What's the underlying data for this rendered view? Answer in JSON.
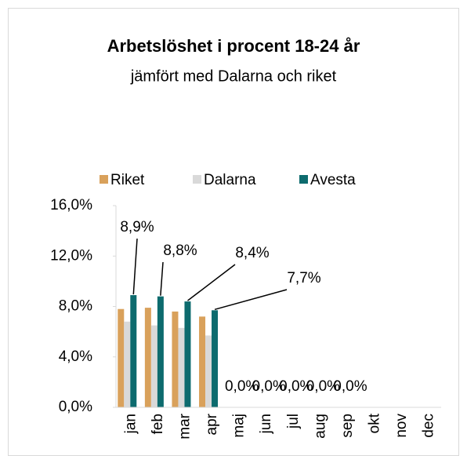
{
  "chart_data": {
    "type": "bar",
    "title": "Arbetslöshet i procent 18-24 år",
    "subtitle": "jämfört med Dalarna och riket",
    "categories": [
      "jan",
      "feb",
      "mar",
      "apr",
      "maj",
      "jun",
      "jul",
      "aug",
      "sep",
      "okt",
      "nov",
      "dec"
    ],
    "series": [
      {
        "name": "Riket",
        "color": "#d9a15b",
        "values": [
          7.8,
          7.9,
          7.6,
          7.2,
          null,
          null,
          null,
          null,
          null,
          null,
          null,
          null
        ]
      },
      {
        "name": "Dalarna",
        "color": "#d9d9d9",
        "values": [
          6.8,
          6.5,
          6.3,
          5.7,
          null,
          null,
          null,
          null,
          null,
          null,
          null,
          null
        ]
      },
      {
        "name": "Avesta",
        "color": "#0d6b6e",
        "values": [
          8.9,
          8.8,
          8.4,
          7.7,
          0,
          0,
          0,
          0,
          0,
          null,
          null,
          null
        ],
        "value_labels": [
          "8,9%",
          "8,8%",
          "8,4%",
          "7,7%",
          "0,0%",
          "0,0%",
          "0,0%",
          "0,0%",
          "0,0%",
          null,
          null,
          null
        ]
      }
    ],
    "ylim": [
      0,
      16
    ],
    "yticks": [
      {
        "value": 0,
        "label": "0,0%"
      },
      {
        "value": 4,
        "label": "4,0%"
      },
      {
        "value": 8,
        "label": "8,0%"
      },
      {
        "value": 12,
        "label": "12,0%"
      },
      {
        "value": 16,
        "label": "16,0%"
      }
    ],
    "legend": "top"
  }
}
